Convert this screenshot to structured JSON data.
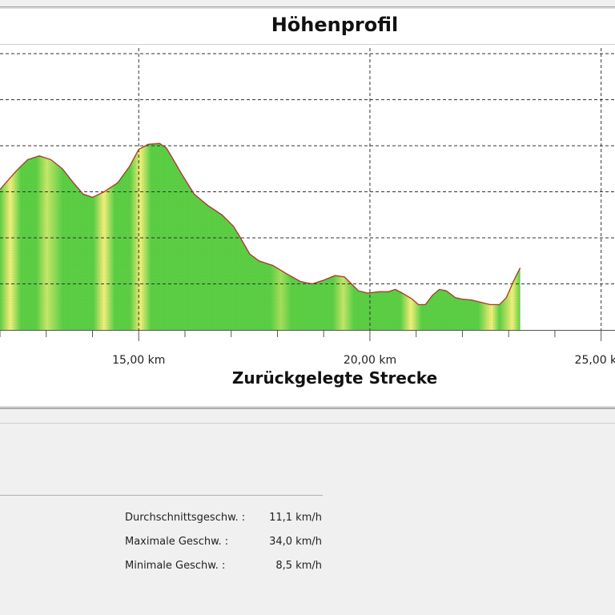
{
  "chart_data": {
    "type": "area",
    "title": "Höhenprofil",
    "xlabel": "Zurückgelegte Strecke",
    "ylabel": "",
    "x_unit": "km",
    "xlim": [
      12.0,
      25.3
    ],
    "ylim": [
      0,
      6
    ],
    "x_ticks": [
      {
        "value": 15,
        "label": "15,00 km"
      },
      {
        "value": 20,
        "label": "20,00 km"
      },
      {
        "value": 25,
        "label": "25,00 km"
      }
    ],
    "grid": true,
    "series": [
      {
        "points": [
          [
            12.0,
            3.05
          ],
          [
            12.35,
            3.45
          ],
          [
            12.6,
            3.7
          ],
          [
            12.85,
            3.78
          ],
          [
            13.1,
            3.7
          ],
          [
            13.35,
            3.5
          ],
          [
            13.6,
            3.18
          ],
          [
            13.8,
            2.95
          ],
          [
            14.0,
            2.88
          ],
          [
            14.25,
            3.0
          ],
          [
            14.55,
            3.2
          ],
          [
            14.8,
            3.55
          ],
          [
            15.0,
            3.92
          ],
          [
            15.2,
            4.03
          ],
          [
            15.45,
            4.05
          ],
          [
            15.6,
            3.95
          ],
          [
            15.75,
            3.7
          ],
          [
            15.95,
            3.35
          ],
          [
            16.2,
            2.95
          ],
          [
            16.5,
            2.7
          ],
          [
            16.8,
            2.5
          ],
          [
            17.05,
            2.25
          ],
          [
            17.2,
            2.0
          ],
          [
            17.4,
            1.65
          ],
          [
            17.6,
            1.5
          ],
          [
            17.9,
            1.4
          ],
          [
            18.2,
            1.22
          ],
          [
            18.5,
            1.05
          ],
          [
            18.75,
            1.0
          ],
          [
            19.0,
            1.08
          ],
          [
            19.25,
            1.18
          ],
          [
            19.45,
            1.15
          ],
          [
            19.6,
            1.0
          ],
          [
            19.75,
            0.85
          ],
          [
            19.95,
            0.8
          ],
          [
            20.2,
            0.83
          ],
          [
            20.4,
            0.83
          ],
          [
            20.55,
            0.88
          ],
          [
            20.7,
            0.8
          ],
          [
            20.9,
            0.68
          ],
          [
            21.05,
            0.55
          ],
          [
            21.2,
            0.55
          ],
          [
            21.35,
            0.75
          ],
          [
            21.5,
            0.88
          ],
          [
            21.65,
            0.85
          ],
          [
            21.85,
            0.7
          ],
          [
            22.0,
            0.67
          ],
          [
            22.2,
            0.65
          ],
          [
            22.4,
            0.6
          ],
          [
            22.6,
            0.55
          ],
          [
            22.8,
            0.55
          ],
          [
            22.95,
            0.7
          ],
          [
            23.1,
            1.05
          ],
          [
            23.25,
            1.35
          ]
        ]
      }
    ]
  },
  "stats": [
    {
      "label": "Durchschnittsgeschw. :",
      "value": "11,1 km/h"
    },
    {
      "label": "Maximale Geschw. :",
      "value": "34,0 km/h"
    },
    {
      "label": "Minimale Geschw. :",
      "value": "8,5 km/h"
    }
  ],
  "colors": {
    "area_green": "#5ccf45",
    "area_yellow": "#f5f07a",
    "profile_line": "#b03030",
    "grid": "#333333"
  }
}
